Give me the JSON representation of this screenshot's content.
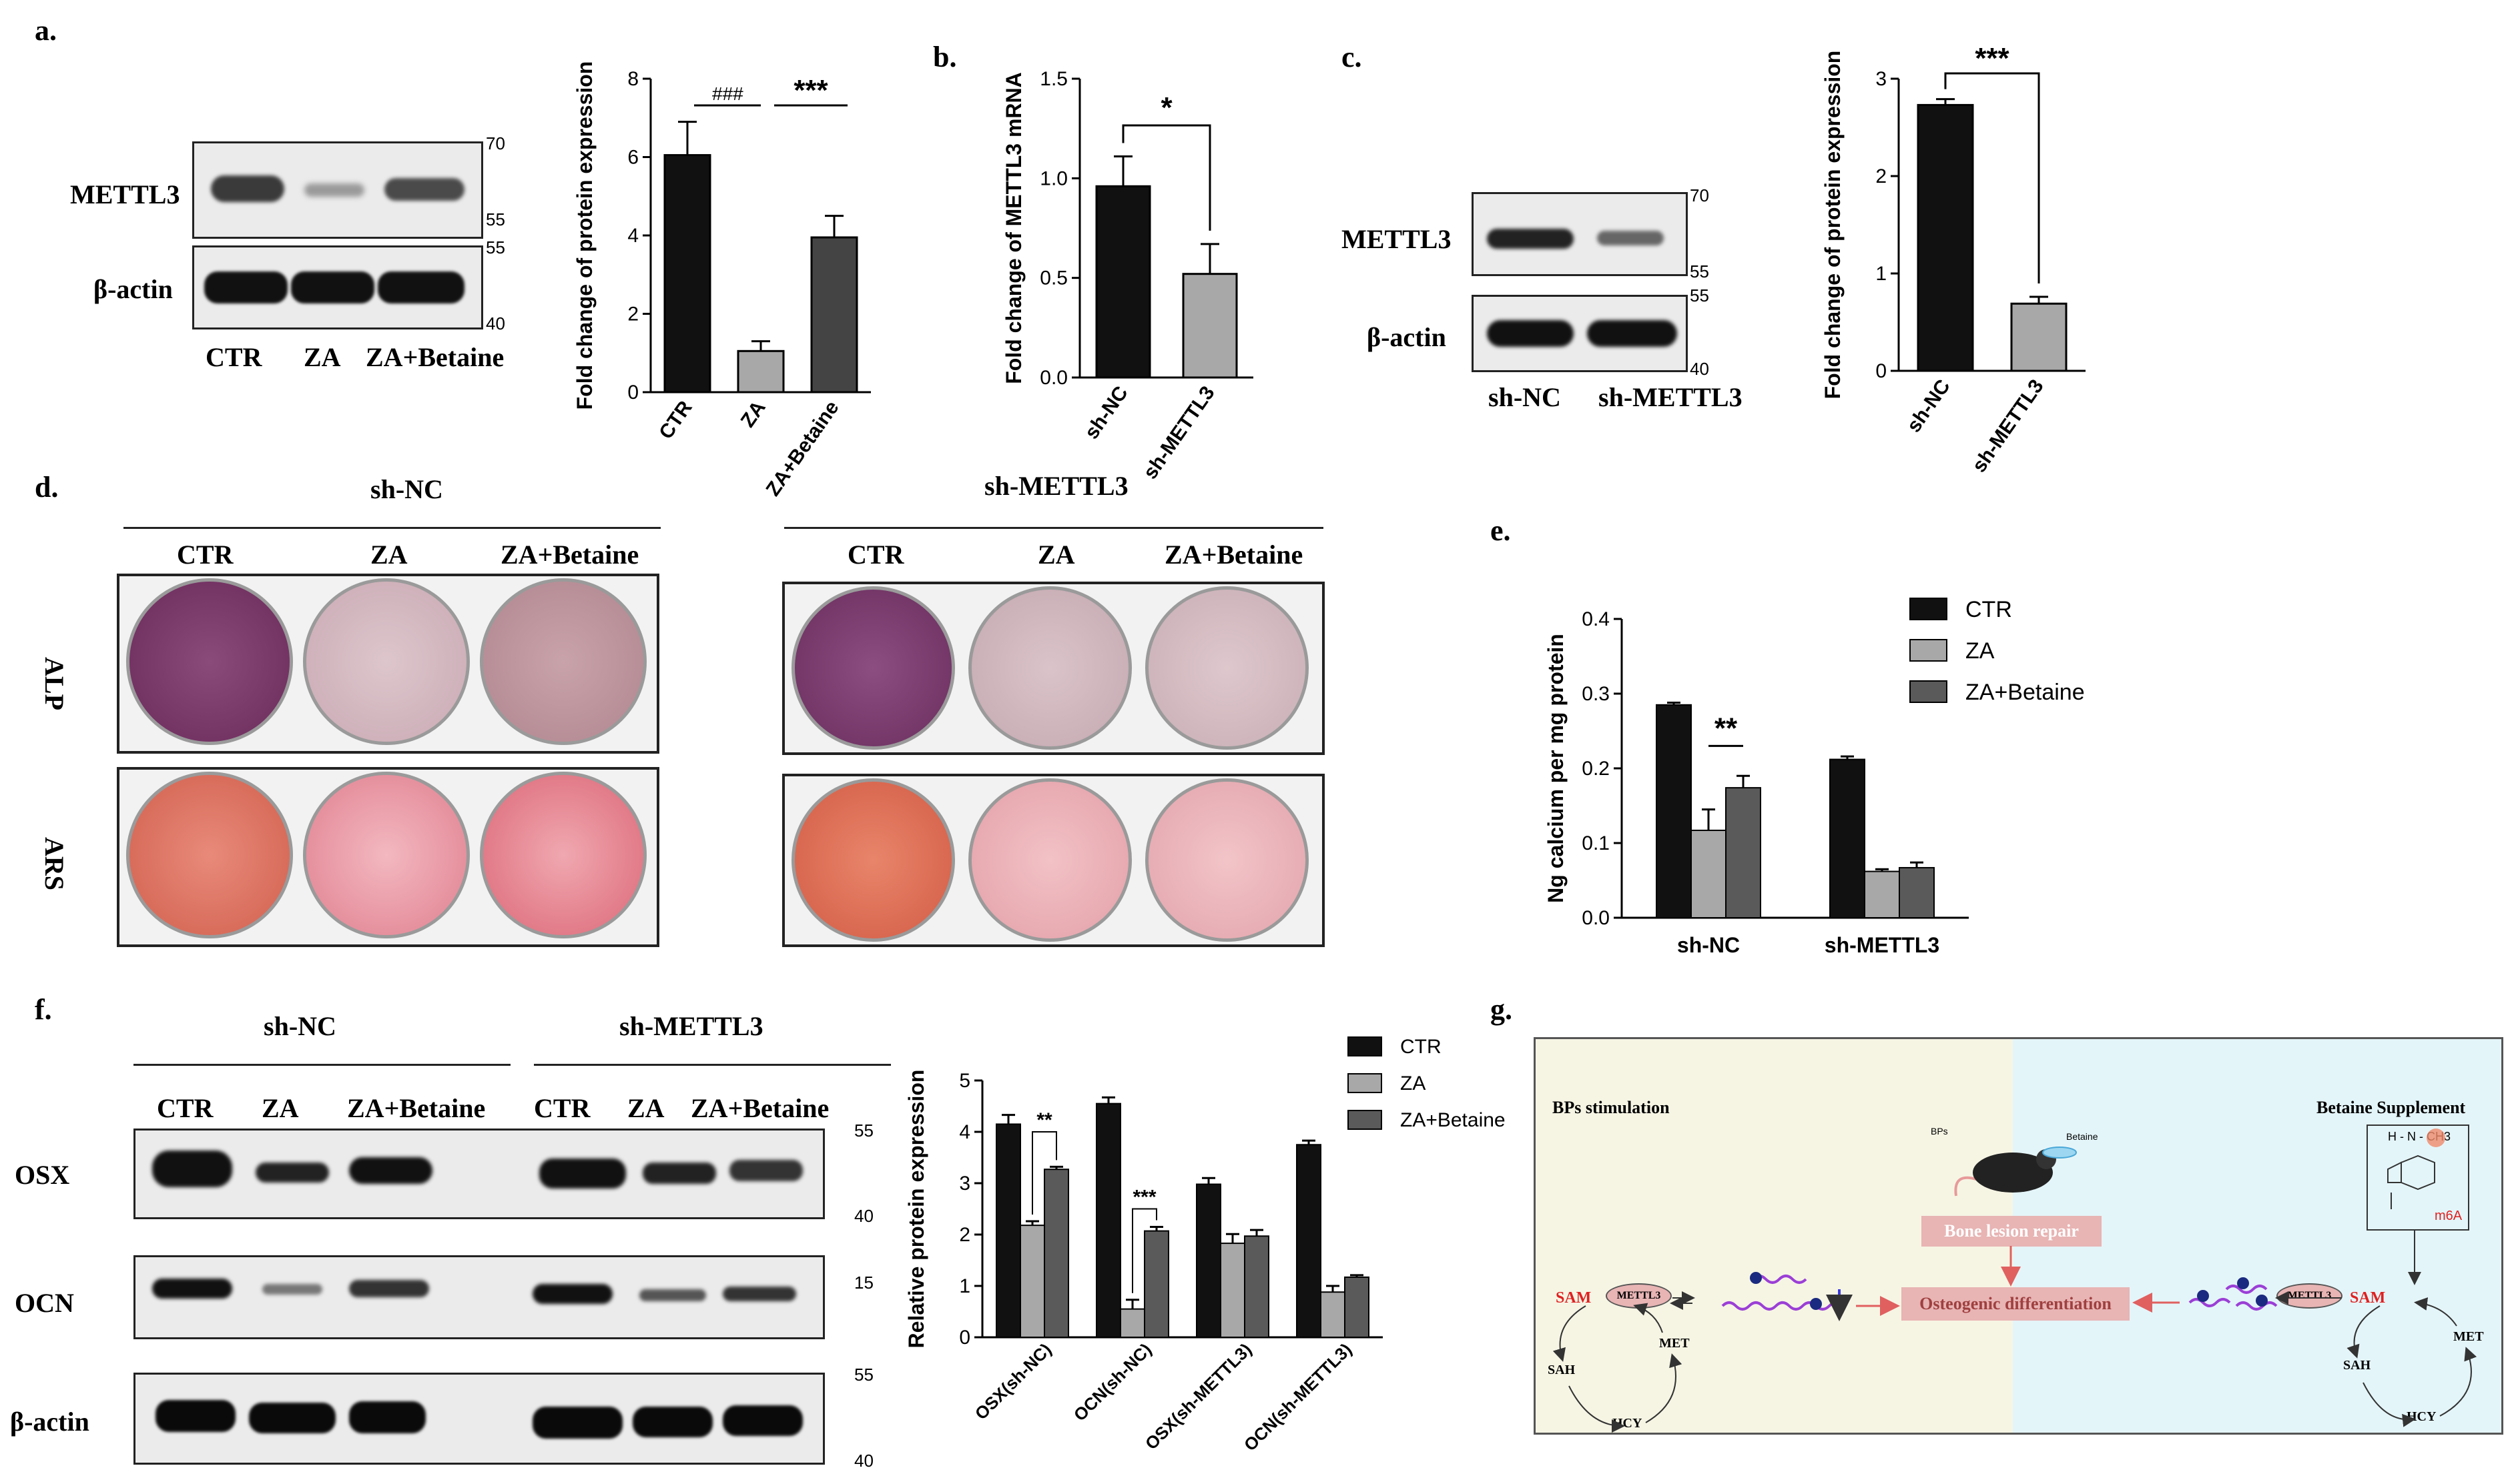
{
  "panels": {
    "a": "a.",
    "b": "b.",
    "c": "c.",
    "d": "d.",
    "e": "e.",
    "f": "f.",
    "g": "g."
  },
  "panel_a": {
    "blot_rows": [
      "METTL3",
      "β-actin"
    ],
    "markers": [
      "70",
      "55",
      "55",
      "40"
    ],
    "lanes": [
      "CTR",
      "ZA",
      "ZA+Betaine"
    ]
  },
  "panel_c": {
    "blot_rows": [
      "METTL3",
      "β-actin"
    ],
    "markers": [
      "70",
      "55",
      "55",
      "40"
    ],
    "lanes": [
      "sh-NC",
      "sh-METTL3"
    ]
  },
  "panel_d": {
    "group_left": "sh-NC",
    "group_right": "sh-METTL3",
    "lanes": [
      "CTR",
      "ZA",
      "ZA+Betaine"
    ],
    "rows": [
      "ALP",
      "ARS"
    ]
  },
  "panel_f": {
    "groups": [
      "sh-NC",
      "sh-METTL3"
    ],
    "lanes": [
      "CTR",
      "ZA",
      "ZA+Betaine",
      "CTR",
      "ZA",
      "ZA+Betaine"
    ],
    "rows": [
      "OSX",
      "OCN",
      "β-actin"
    ],
    "markers": [
      "55",
      "40",
      "15",
      "55",
      "40"
    ]
  },
  "panel_g": {
    "left_title": "BPs stimulation",
    "right_title": "Betaine Supplement",
    "bone_repair": "Bone lesion repair",
    "osteogenic": "Osteogenic differentiation",
    "sam_left": "SAM",
    "sam_right": "SAM",
    "mettl3": "METTL3",
    "met": "MET",
    "sah": "SAH",
    "hcy": "HCY",
    "m6a": "m6A",
    "h_n_ch3": "H - N - CH3",
    "bps": "BPs",
    "betaine_small": "Betaine",
    "colors": {
      "left_bg": "#f6f5e4",
      "right_bg": "#e4f5f9",
      "label_pink": "#e8b4b4",
      "sam_red": "#e02020",
      "purple": "#9b3fd6"
    }
  },
  "chart_data": [
    {
      "id": "a-chart",
      "type": "bar",
      "categories": [
        "CTR",
        "ZA",
        "ZA+Betaine"
      ],
      "values": [
        6.05,
        1.05,
        3.95
      ],
      "errors": [
        0.85,
        0.25,
        0.55
      ],
      "ylabel": "Fold change of  protein expression",
      "ylim": [
        0,
        8
      ],
      "yticks": [
        "0",
        "2",
        "4",
        "6",
        "8"
      ],
      "annotations": [
        "###",
        "***"
      ],
      "colors": [
        "#111111",
        "#a8a8a8",
        "#444444"
      ]
    },
    {
      "id": "b-chart",
      "type": "bar",
      "categories": [
        "sh-NC",
        "sh-METTL3"
      ],
      "values": [
        0.96,
        0.52
      ],
      "errors": [
        0.15,
        0.15
      ],
      "ylabel": "Fold change of METTL3 mRNA",
      "ylim": [
        0,
        1.5
      ],
      "yticks": [
        "0.0",
        "0.5",
        "1.0",
        "1.5"
      ],
      "annotations": [
        "*"
      ],
      "colors": [
        "#111111",
        "#a8a8a8"
      ]
    },
    {
      "id": "c-chart",
      "type": "bar",
      "categories": [
        "sh-NC",
        "sh-METTL3"
      ],
      "values": [
        2.73,
        0.69
      ],
      "errors": [
        0.06,
        0.07
      ],
      "ylabel": "Fold change of  protein expression",
      "ylim": [
        0,
        3
      ],
      "yticks": [
        "0",
        "1",
        "2",
        "3"
      ],
      "annotations": [
        "***"
      ],
      "colors": [
        "#111111",
        "#a8a8a8"
      ]
    },
    {
      "id": "e-chart",
      "type": "bar",
      "categories": [
        "sh-NC",
        "sh-METTL3"
      ],
      "series": [
        {
          "name": "CTR",
          "values": [
            0.285,
            0.212
          ],
          "errors": [
            0.003,
            0.004
          ],
          "color": "#111111"
        },
        {
          "name": "ZA",
          "values": [
            0.117,
            0.062
          ],
          "errors": [
            0.028,
            0.003
          ],
          "color": "#a8a8a8"
        },
        {
          "name": "ZA+Betaine",
          "values": [
            0.174,
            0.067
          ],
          "errors": [
            0.016,
            0.007
          ],
          "color": "#5a5a5a"
        }
      ],
      "ylabel": "Ng  calcium per mg protein",
      "ylim": [
        0,
        0.4
      ],
      "yticks": [
        "0.0",
        "0.1",
        "0.2",
        "0.3",
        "0.4"
      ],
      "annotations": [
        "**"
      ],
      "legend": "top-right"
    },
    {
      "id": "f-chart",
      "type": "bar",
      "categories": [
        "OSX(sh-NC)",
        "OCN(sh-NC)",
        "OSX(sh-METTL3)",
        "OCN(sh-METTL3)"
      ],
      "series": [
        {
          "name": "CTR",
          "values": [
            4.15,
            4.55,
            2.98,
            3.75
          ],
          "errors": [
            0.18,
            0.12,
            0.12,
            0.08
          ],
          "color": "#111111"
        },
        {
          "name": "ZA",
          "values": [
            2.18,
            0.55,
            1.83,
            0.88
          ],
          "errors": [
            0.08,
            0.18,
            0.18,
            0.12
          ],
          "color": "#a8a8a8"
        },
        {
          "name": "ZA+Betaine",
          "values": [
            3.27,
            2.07,
            1.97,
            1.17
          ],
          "errors": [
            0.05,
            0.08,
            0.12,
            0.04
          ],
          "color": "#5a5a5a"
        }
      ],
      "ylabel": "Relative protein expression",
      "ylim": [
        0,
        5
      ],
      "yticks": [
        "0",
        "1",
        "2",
        "3",
        "4",
        "5"
      ],
      "annotations": [
        "**",
        "***"
      ],
      "legend": "top-right"
    }
  ]
}
